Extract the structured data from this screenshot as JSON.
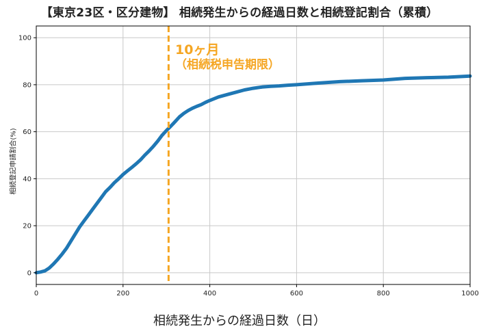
{
  "chart_data": {
    "type": "line",
    "title": "【東京23区・区分建物】 相続発生からの経過日数と相続登記割合（累積）",
    "xlabel": "相続発生からの経過日数（日）",
    "ylabel": "相続登記申請割合(%)",
    "xlim": [
      0,
      1000
    ],
    "ylim": [
      -5,
      105
    ],
    "x_ticks": [
      "0",
      "200",
      "400",
      "600",
      "800",
      "1000"
    ],
    "y_ticks": [
      "0",
      "20",
      "40",
      "60",
      "80",
      "100"
    ],
    "grid": true,
    "series": [
      {
        "color": "#1f77b4",
        "x": [
          0,
          10,
          20,
          30,
          40,
          50,
          60,
          70,
          80,
          90,
          100,
          110,
          120,
          130,
          140,
          150,
          160,
          170,
          180,
          190,
          200,
          210,
          220,
          230,
          240,
          250,
          260,
          270,
          280,
          290,
          300,
          310,
          320,
          330,
          340,
          350,
          360,
          370,
          380,
          390,
          400,
          420,
          440,
          460,
          480,
          500,
          520,
          540,
          560,
          580,
          600,
          650,
          700,
          750,
          800,
          850,
          900,
          950,
          1000
        ],
        "y": [
          0,
          0.3,
          0.8,
          2.0,
          3.8,
          5.8,
          8.0,
          10.5,
          13.5,
          16.5,
          19.5,
          22.0,
          24.5,
          27.0,
          29.5,
          32.0,
          34.5,
          36.3,
          38.3,
          40.0,
          41.8,
          43.3,
          44.8,
          46.3,
          48.0,
          50.0,
          51.8,
          53.8,
          56.0,
          58.5,
          60.5,
          62.3,
          64.3,
          66.3,
          67.8,
          69.0,
          70.0,
          70.8,
          71.5,
          72.5,
          73.3,
          74.8,
          75.8,
          76.8,
          77.8,
          78.5,
          79.0,
          79.3,
          79.5,
          79.8,
          80.0,
          80.7,
          81.3,
          81.7,
          82.0,
          82.7,
          83.0,
          83.2,
          83.7
        ]
      }
    ],
    "annotations": [
      {
        "x": 305,
        "color": "#f5a623",
        "style": "dashed",
        "text_line1": "10ヶ月",
        "text_line2": "（相続税申告期限）"
      }
    ]
  }
}
